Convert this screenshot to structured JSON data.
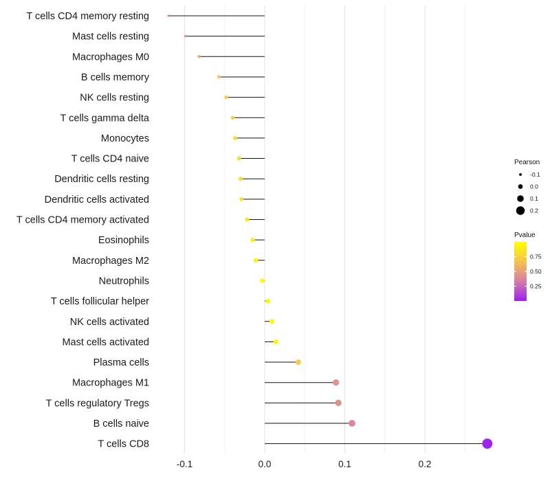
{
  "chart_data": {
    "type": "lollipop",
    "categories": [
      "T cells CD4 memory resting",
      "Mast cells resting",
      "Macrophages M0",
      "B cells memory",
      "NK cells resting",
      "T cells gamma delta",
      "Monocytes",
      "T cells CD4 naive",
      "Dendritic cells resting",
      "Dendritic cells activated",
      "T cells CD4 memory activated",
      "Eosinophils",
      "Macrophages M2",
      "Neutrophils",
      "T cells follicular helper",
      "NK cells activated",
      "Mast cells activated",
      "Plasma cells",
      "Macrophages M1",
      "T cells regulatory  Tregs",
      "B cells naive",
      "T cells CD8"
    ],
    "values": [
      -0.12,
      -0.099,
      -0.082,
      -0.057,
      -0.048,
      -0.04,
      -0.037,
      -0.032,
      -0.03,
      -0.029,
      -0.022,
      -0.015,
      -0.011,
      -0.003,
      0.004,
      0.009,
      0.014,
      0.042,
      0.089,
      0.092,
      0.109,
      0.278
    ],
    "pvalues": [
      0.35,
      0.45,
      0.55,
      0.68,
      0.72,
      0.76,
      0.78,
      0.8,
      0.82,
      0.83,
      0.88,
      0.92,
      0.94,
      0.97,
      0.98,
      0.98,
      0.95,
      0.7,
      0.45,
      0.42,
      0.38,
      0.02
    ],
    "xlim": [
      -0.13,
      0.29
    ],
    "xticks": [
      -0.1,
      0.0,
      0.1,
      0.2
    ],
    "xtick_labels": [
      "-0.1",
      "0.0",
      "0.1",
      "0.2"
    ],
    "grid": true,
    "legend_size": {
      "title": "Pearson",
      "values": [
        -0.1,
        0.0,
        0.1,
        0.2
      ],
      "labels": [
        "-0.1",
        "0.0",
        "0.1",
        "0.2"
      ]
    },
    "legend_color": {
      "title": "Pvalue",
      "ticks": [
        0.75,
        0.5,
        0.25
      ],
      "labels": [
        "0.75",
        "0.50",
        "0.25"
      ],
      "colors": [
        "#ffff00",
        "#f5c14f",
        "#d47dab",
        "#9d1fee"
      ]
    }
  }
}
